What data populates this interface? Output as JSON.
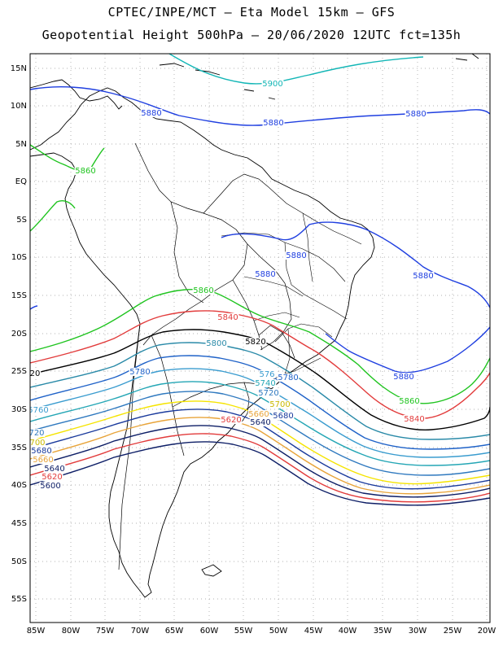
{
  "header": {
    "line1": "CPTEC/INPE/MCT –  Eta Model 15km – GFS",
    "line2": "Geopotential Height 500hPa – 20/06/2020 12UTC fct=135h"
  },
  "axes": {
    "lat_labels": [
      "15N",
      "10N",
      "5N",
      "EQ",
      "5S",
      "10S",
      "15S",
      "20S",
      "25S",
      "30S",
      "35S",
      "40S",
      "45S",
      "50S",
      "55S"
    ],
    "lon_labels": [
      "85W",
      "80W",
      "75W",
      "70W",
      "65W",
      "60W",
      "55W",
      "50W",
      "45W",
      "40W",
      "35W",
      "30W",
      "25W",
      "20W"
    ]
  },
  "contours": [
    {
      "value": 5900,
      "color": "#13b6b6",
      "label": "5900"
    },
    {
      "value": 5880,
      "color": "#1f3fe0",
      "label": "5880"
    },
    {
      "value": 5860,
      "color": "#1fc41f",
      "label": "5860"
    },
    {
      "value": 5840,
      "color": "#e23b3b",
      "label": "5840"
    },
    {
      "value": 5820,
      "color": "#000000",
      "label": "5820"
    },
    {
      "value": 5800,
      "color": "#2a8aa8",
      "label": "5800"
    },
    {
      "value": 5780,
      "color": "#1f62c8",
      "label": "5780"
    },
    {
      "value": 5760,
      "color": "#3a9ccf",
      "label": "5760"
    },
    {
      "value": 5740,
      "color": "#24a6b5",
      "label": "5740"
    },
    {
      "value": 5720,
      "color": "#2f79bf",
      "label": "5720"
    },
    {
      "value": 5700,
      "color": "#f5e400",
      "label": "5700"
    },
    {
      "value": 5680,
      "color": "#1a3a9c",
      "label": "5680"
    },
    {
      "value": 5660,
      "color": "#e8a43a",
      "label": "5660"
    },
    {
      "value": 5640,
      "color": "#0d1e66",
      "label": "5640"
    },
    {
      "value": 5620,
      "color": "#e23b3b",
      "label": "5620"
    },
    {
      "value": 5600,
      "color": "#0d1e66",
      "label": "5600"
    }
  ],
  "contour_labels": [
    {
      "text": "5900",
      "color": "#13b6b6"
    },
    {
      "text": "5880",
      "color": "#1f3fe0"
    },
    {
      "text": "5880",
      "color": "#1f3fe0"
    },
    {
      "text": "5880",
      "color": "#1f3fe0"
    },
    {
      "text": "5880",
      "color": "#1f3fe0"
    },
    {
      "text": "5880",
      "color": "#1f3fe0"
    },
    {
      "text": "5880",
      "color": "#1f3fe0"
    },
    {
      "text": "5880",
      "color": "#1f3fe0"
    },
    {
      "text": "5860",
      "color": "#1fc41f"
    },
    {
      "text": "5860",
      "color": "#1fc41f"
    },
    {
      "text": "5860",
      "color": "#1fc41f"
    },
    {
      "text": "5840",
      "color": "#e23b3b"
    },
    {
      "text": "5840",
      "color": "#e23b3b"
    },
    {
      "text": "5820",
      "color": "#000000"
    },
    {
      "text": "20",
      "color": "#000000"
    },
    {
      "text": "5800",
      "color": "#2a8aa8"
    },
    {
      "text": "5780",
      "color": "#1f62c8"
    },
    {
      "text": "5780",
      "color": "#1f62c8"
    },
    {
      "text": "576",
      "color": "#3a9ccf"
    },
    {
      "text": "5740",
      "color": "#24a6b5"
    },
    {
      "text": "5720",
      "color": "#2f79bf"
    },
    {
      "text": "5760",
      "color": "#3a9ccf"
    },
    {
      "text": "720",
      "color": "#2f79bf"
    },
    {
      "text": "700",
      "color": "#c9b800"
    },
    {
      "text": "5700",
      "color": "#c9b800"
    },
    {
      "text": "5680",
      "color": "#1a3a9c"
    },
    {
      "text": "5680",
      "color": "#1a3a9c"
    },
    {
      "text": "5660",
      "color": "#e8a43a"
    },
    {
      "text": "5660",
      "color": "#e8a43a"
    },
    {
      "text": "5640",
      "color": "#0d1e66"
    },
    {
      "text": "5640",
      "color": "#0d1e66"
    },
    {
      "text": "5620",
      "color": "#e23b3b"
    },
    {
      "text": "5620",
      "color": "#e23b3b"
    },
    {
      "text": "5600",
      "color": "#0d1e66"
    }
  ]
}
